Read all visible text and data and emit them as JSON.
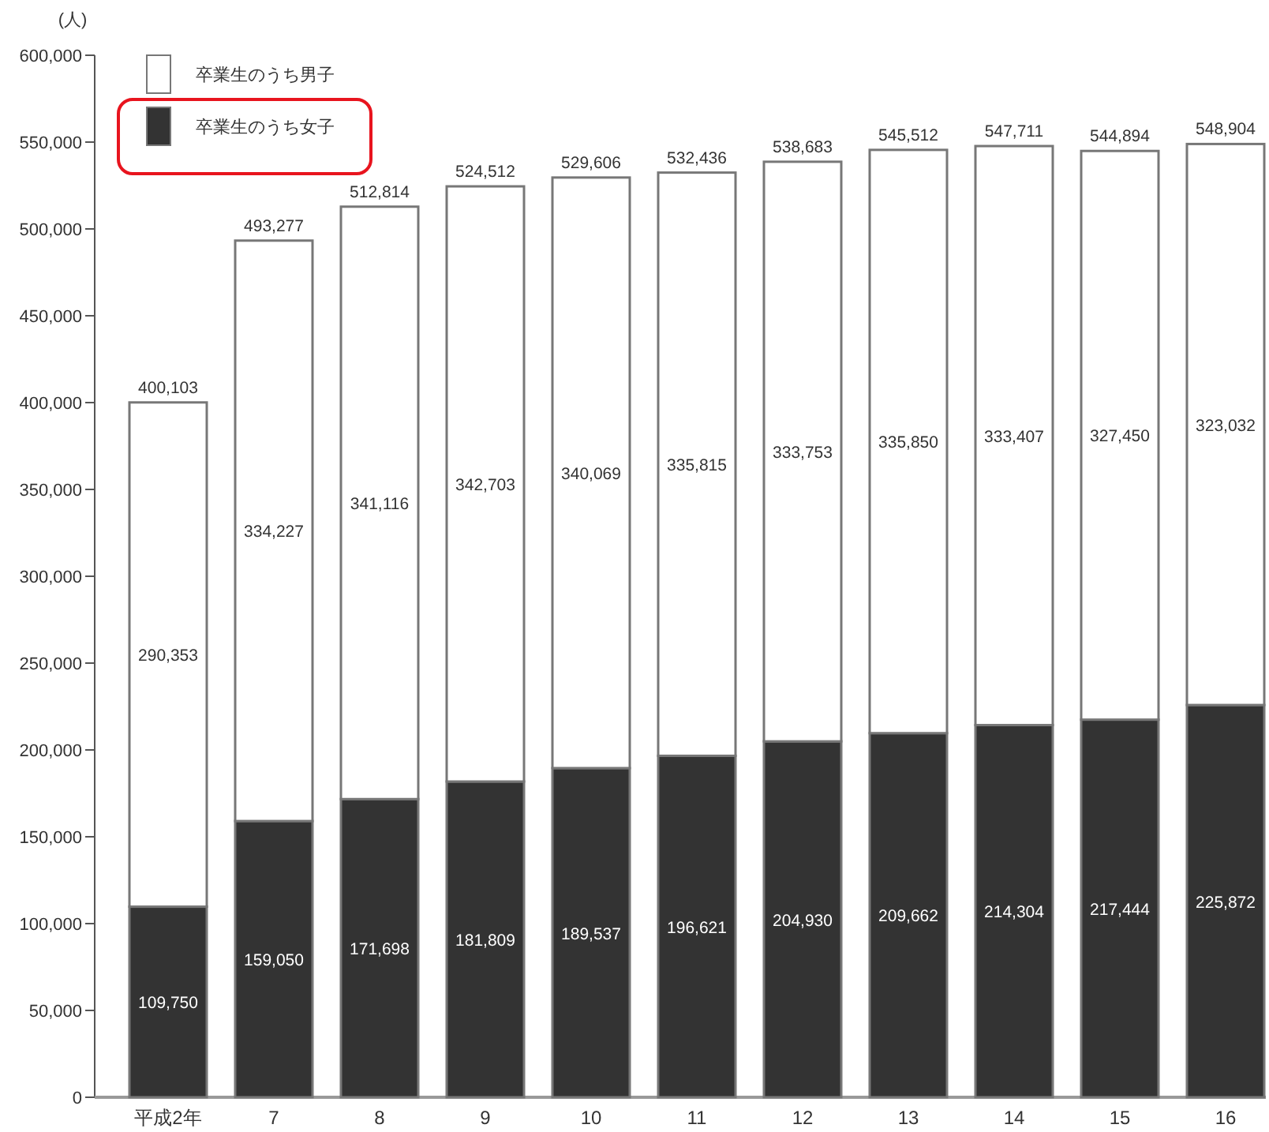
{
  "chart_data": {
    "type": "bar",
    "stacked": true,
    "ylabel": "(人)",
    "categories": [
      "平成2年",
      "7",
      "8",
      "9",
      "10",
      "11",
      "12",
      "13",
      "14",
      "15",
      "16"
    ],
    "series": [
      {
        "name": "卒業生のうち女子",
        "color": "#333333",
        "values": [
          109750,
          159050,
          171698,
          181809,
          189537,
          196621,
          204930,
          209662,
          214304,
          217444,
          225872
        ],
        "value_labels": [
          "109,750",
          "159,050",
          "171,698",
          "181,809",
          "189,537",
          "196,621",
          "204,930",
          "209,662",
          "214,304",
          "217,444",
          "225,872"
        ]
      },
      {
        "name": "卒業生のうち男子",
        "color": "#ffffff",
        "values": [
          290353,
          334227,
          341116,
          342703,
          340069,
          335815,
          333753,
          335850,
          333407,
          327450,
          323032
        ],
        "value_labels": [
          "290,353",
          "334,227",
          "341,116",
          "342,703",
          "340,069",
          "335,815",
          "333,753",
          "335,850",
          "333,407",
          "327,450",
          "323,032"
        ]
      }
    ],
    "totals": [
      "400,103",
      "493,277",
      "512,814",
      "524,512",
      "529,606",
      "532,436",
      "538,683",
      "545,512",
      "547,711",
      "544,894",
      "548,904"
    ],
    "legend": "top left",
    "ylim": [
      0,
      600000
    ],
    "yticks": [
      0,
      {
        "value": 50000,
        "label": "50,000"
      },
      {
        "value": 100000,
        "label": "100,000"
      },
      {
        "value": 150000,
        "label": "150,000"
      },
      {
        "value": 200000,
        "label": "200,000"
      },
      {
        "value": 250000,
        "label": "250,000"
      },
      {
        "value": 300000,
        "label": "300,000"
      },
      {
        "value": 350000,
        "label": "350,000"
      },
      {
        "value": 400000,
        "label": "400,000"
      },
      {
        "value": 450000,
        "label": "450,000"
      },
      {
        "value": 500000,
        "label": "500,000"
      },
      {
        "value": 550000,
        "label": "550,000"
      },
      {
        "value": 600000,
        "label": "600,000"
      }
    ]
  }
}
